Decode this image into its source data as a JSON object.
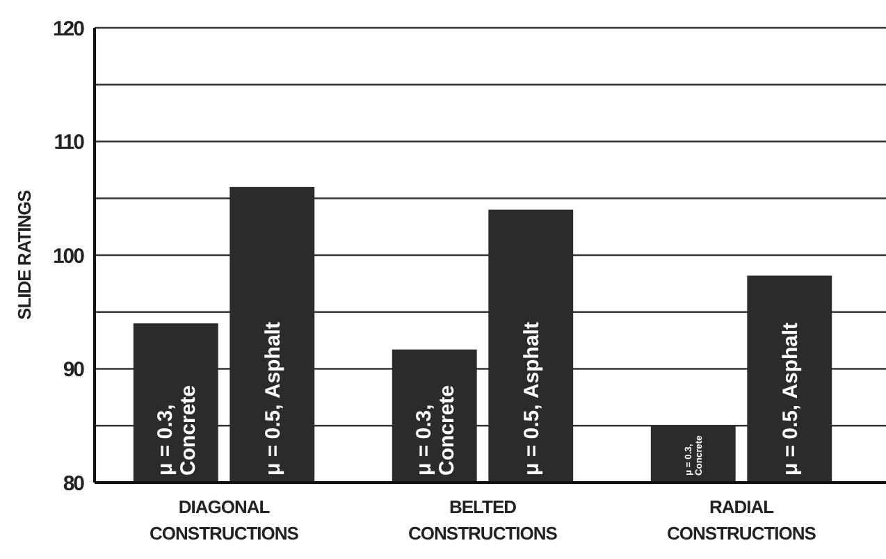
{
  "chart_data": {
    "type": "bar",
    "ylabel": "SLIDE RATINGS",
    "categories": [
      "DIAGONAL CONSTRUCTIONS",
      "BELTED CONSTRUCTIONS",
      "RADIAL CONSTRUCTIONS"
    ],
    "series": [
      {
        "name": "μ = 0.3, Concrete",
        "color": "#2b2b2b",
        "values": [
          94,
          91.7,
          85
        ]
      },
      {
        "name": "μ = 0.5, Asphalt",
        "color": "#2b2b2b",
        "values": [
          106,
          104,
          98.2
        ]
      }
    ],
    "ylim": [
      80,
      120
    ],
    "yticks": [
      80,
      {
        "value": 85,
        "label": null
      },
      90,
      {
        "value": 95,
        "label": null
      },
      100,
      {
        "value": 105,
        "label": null
      },
      110,
      {
        "value": 115,
        "label": null
      },
      120
    ],
    "grid": "y"
  }
}
